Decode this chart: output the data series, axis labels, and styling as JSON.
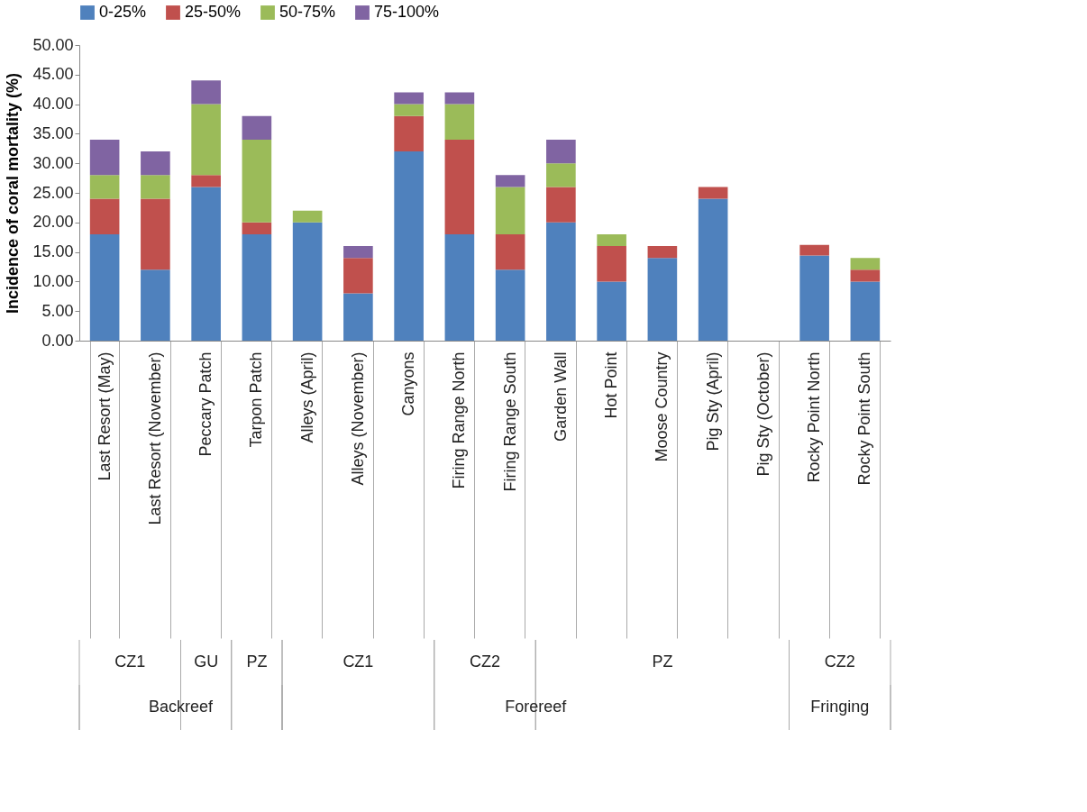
{
  "chart_data": {
    "type": "bar",
    "stacked": true,
    "ylabel": "Incidence of coral mortality (%)",
    "categories": [
      "Last Resort (May)",
      "Last Resort (November)",
      "Peccary Patch",
      "Tarpon Patch",
      "Alleys (April)",
      "Alleys (November)",
      "Canyons",
      "Firing Range North",
      "Firing Range South",
      "Garden Wall",
      "Hot Point",
      "Moose Country",
      "Pig Sty (April)",
      "Pig Sty (October)",
      "Rocky Point North",
      "Rocky Point South"
    ],
    "series": [
      {
        "name": "0-25%",
        "color": "#4f81bd",
        "values": [
          18,
          12,
          26,
          18,
          20,
          8,
          32,
          18,
          12,
          20,
          10,
          14,
          24,
          0,
          14.4,
          10
        ]
      },
      {
        "name": "25-50%",
        "color": "#c0504d",
        "values": [
          6,
          12,
          2,
          2,
          0,
          6,
          6,
          16,
          6,
          6,
          6,
          2,
          2,
          0,
          1.8,
          2
        ]
      },
      {
        "name": "50-75%",
        "color": "#9bbb59",
        "values": [
          4,
          4,
          12,
          14,
          2,
          0,
          2,
          6,
          8,
          4,
          2,
          0,
          0,
          0,
          0,
          2
        ]
      },
      {
        "name": "75-100%",
        "color": "#8064a2",
        "values": [
          6,
          4,
          4,
          4,
          0,
          2,
          2,
          2,
          2,
          4,
          0,
          0,
          0,
          0,
          0,
          0
        ]
      }
    ],
    "ylim": [
      0,
      50
    ],
    "yticks": [
      {
        "value": 0,
        "label": "0.00"
      },
      {
        "value": 5,
        "label": "5.00"
      },
      {
        "value": 10,
        "label": "10.00"
      },
      {
        "value": 15,
        "label": "15.00"
      },
      {
        "value": 20,
        "label": "20.00"
      },
      {
        "value": 25,
        "label": "25.00"
      },
      {
        "value": 30,
        "label": "30.00"
      },
      {
        "value": 35,
        "label": "35.00"
      },
      {
        "value": 40,
        "label": "40.00"
      },
      {
        "value": 45,
        "label": "45.00"
      },
      {
        "value": 50,
        "label": "50.00"
      }
    ],
    "grid": false,
    "legend": "top",
    "annotations": [
      "CZ1",
      "GU",
      "PZ",
      "CZ1",
      "CZ2",
      "PZ",
      "CZ2",
      "Backreef",
      "Forereef",
      "Fringing"
    ]
  }
}
